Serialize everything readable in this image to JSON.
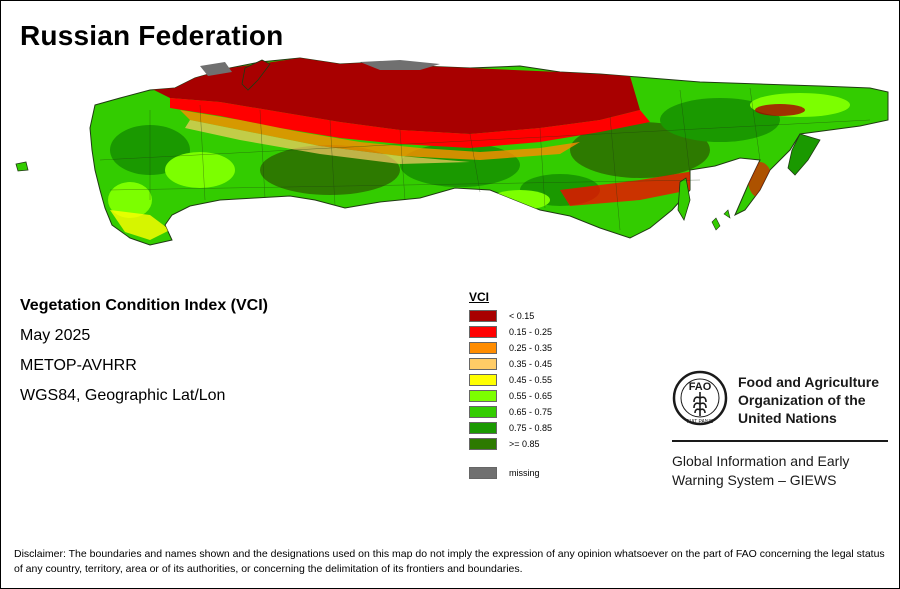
{
  "title": "Russian Federation",
  "info": {
    "index_name": "Vegetation Condition Index (VCI)",
    "date": "May 2025",
    "sensor": "METOP-AVHRR",
    "projection": "WGS84, Geographic Lat/Lon"
  },
  "legend": {
    "title": "VCI",
    "classes": [
      {
        "label": "< 0.15",
        "color": "#a80000"
      },
      {
        "label": "0.15 - 0.25",
        "color": "#ff0000"
      },
      {
        "label": "0.25 - 0.35",
        "color": "#ff8c00"
      },
      {
        "label": "0.35 - 0.45",
        "color": "#ffcc66"
      },
      {
        "label": "0.45 - 0.55",
        "color": "#ffff00"
      },
      {
        "label": "0.55 - 0.65",
        "color": "#7cff00"
      },
      {
        "label": "0.65 - 0.75",
        "color": "#33cc00"
      },
      {
        "label": "0.75 - 0.85",
        "color": "#1a9900"
      },
      {
        "label": ">= 0.85",
        "color": "#2d7a00"
      }
    ],
    "missing": {
      "label": "missing",
      "color": "#707070"
    }
  },
  "organization": {
    "emblem_letters": "FAO",
    "emblem_motto": "FIAT PANIS",
    "name_lines": [
      "Food and Agriculture",
      "Organization of the",
      "United Nations"
    ],
    "system_lines": [
      "Global Information and Early",
      "Warning System – GIEWS"
    ]
  },
  "disclaimer": "Disclaimer: The boundaries and names shown and the designations used on this map do not imply the expression of any opinion whatsoever on the part of FAO concerning the legal status of any country, territory, area or of its authorities, or concerning the delimitation of its frontiers and boundaries."
}
